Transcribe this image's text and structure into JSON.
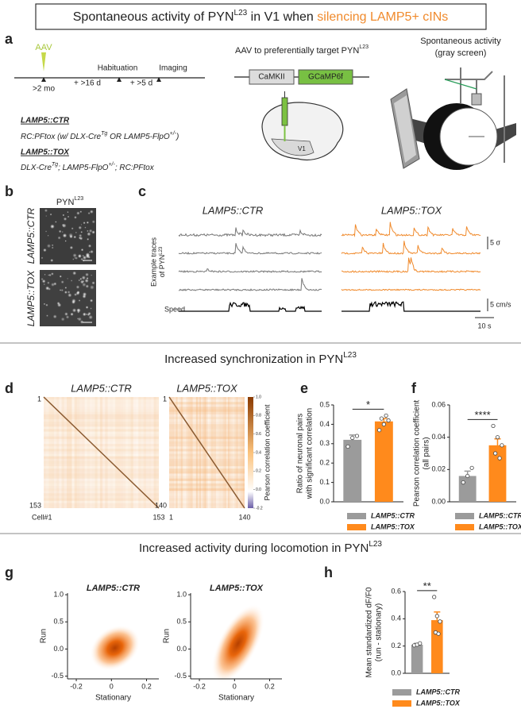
{
  "title": [
    "Spontaneous activity of PYN",
    "L23",
    " in V1 when ",
    "silencing LAMP5+ cINs"
  ],
  "panel_a": {
    "label": "a",
    "aav": "AAV",
    "timeline": [
      ">2 mo",
      "+ >16 d",
      "Habituation",
      "+ >5 d",
      "Imaging"
    ],
    "ctr_name": "LAMP5::CTR",
    "ctr_genotype": [
      "RC:PFtox (w/ DLX-Cre",
      "Tg",
      " OR LAMP5-FlpO",
      "+/-",
      ")"
    ],
    "tox_name": "LAMP5::TOX",
    "tox_genotype": [
      "DLX-Cre",
      "Tg",
      "; LAMP5-FlpO",
      "+/-",
      "; RC:PFtox"
    ],
    "construct_title": [
      "AAV to preferentially target PYN",
      "L23"
    ],
    "promoter": "CaMKII",
    "indicator": "GCaMP6f",
    "region": "V1",
    "setup_title": [
      "Spontaneous activity",
      "(gray screen)"
    ]
  },
  "panel_b": {
    "label": "b",
    "title": [
      "PYN",
      "L23"
    ],
    "rows": [
      "LAMP5::CTR",
      "LAMP5::TOX"
    ]
  },
  "panel_c": {
    "label": "c",
    "groups": [
      "LAMP5::CTR",
      "LAMP5::TOX"
    ],
    "ylabel": [
      "Example traces",
      "of PYN",
      "L23"
    ],
    "speed": "Speed",
    "scale": [
      "5 σ",
      "5 cm/s",
      "10 s"
    ]
  },
  "section_1": [
    "Increased synchronization in PYN",
    "L23"
  ],
  "section_2": [
    "Increased activity during locomotion in PYN",
    "L23"
  ],
  "chart_data": [
    {
      "type": "heatmap",
      "label": "d",
      "titles": [
        "LAMP5::CTR",
        "LAMP5::TOX"
      ],
      "axis_labels": [
        [
          "1",
          "153",
          "Cell#1",
          "153"
        ],
        [
          "1",
          "140",
          "1",
          "140"
        ]
      ],
      "colorbar_label": "Pearson correlation coefficient",
      "colorbar_lim": [
        -0.2,
        1.0
      ],
      "colorbar_ticks": [
        {
          "value": 1,
          "label": "1.0"
        },
        0.8,
        0.6,
        0.4,
        0.2,
        {
          "value": 0,
          "label": "0.0"
        },
        -0.2
      ]
    },
    {
      "type": "bar",
      "label": "e",
      "ylabel": [
        "Ratio of neuronal pairs",
        "with significant correlation"
      ],
      "categories": [
        "LAMP5::CTR",
        "LAMP5::TOX"
      ],
      "colors": [
        "#9b9b9b",
        "#ff8a1c"
      ],
      "values": [
        0.32,
        0.415
      ],
      "errors": [
        0.025,
        0.015
      ],
      "points": [
        [
          0.285,
          0.33,
          0.34
        ],
        [
          0.37,
          0.4,
          0.42,
          0.43,
          0.445
        ]
      ],
      "significance": "*",
      "ylim": [
        0,
        0.5
      ],
      "yticks": [
        {
          "value": 0,
          "label": "0.0"
        },
        0.1,
        0.2,
        0.3,
        0.4,
        0.5
      ]
    },
    {
      "type": "bar",
      "label": "f",
      "ylabel": [
        "Pearson correlation coefficient",
        "(all pairs)"
      ],
      "categories": [
        "LAMP5::CTR",
        "LAMP5::TOX"
      ],
      "colors": [
        "#9b9b9b",
        "#ff8a1c"
      ],
      "values": [
        0.016,
        0.035
      ],
      "errors": [
        0.003,
        0.004
      ],
      "points": [
        [
          0.012,
          0.016,
          0.021
        ],
        [
          0.047,
          0.04,
          0.035,
          0.03,
          0.027
        ]
      ],
      "significance": "****",
      "ylim": [
        0,
        0.06
      ],
      "yticks": [
        {
          "value": 0,
          "label": "0.00"
        },
        0.02,
        0.04,
        0.06
      ]
    },
    {
      "type": "density",
      "label": "g",
      "xlabel": "Stationary",
      "ylabel": "Run",
      "xlim": [
        -0.25,
        0.27
      ],
      "ylim": [
        -0.55,
        1.03
      ],
      "xticks": [
        -0.2,
        0,
        0.2
      ],
      "yticks": [
        -0.5,
        {
          "value": 0,
          "label": "0.0"
        },
        0.5,
        {
          "value": 1,
          "label": "1.0"
        }
      ],
      "panels": [
        {
          "title": "LAMP5::CTR",
          "peak_x": 0.02,
          "peak_y": 0.02
        },
        {
          "title": "LAMP5::TOX",
          "peak_x": 0.02,
          "peak_y": 0.1
        }
      ]
    },
    {
      "type": "bar",
      "label": "h",
      "ylabel": [
        "Mean standardized dF/F0",
        "(run - stationary)"
      ],
      "categories": [
        "LAMP5::CTR",
        "LAMP5::TOX"
      ],
      "colors": [
        "#9b9b9b",
        "#ff8a1c"
      ],
      "values": [
        0.21,
        0.39
      ],
      "errors": [
        0.01,
        0.06
      ],
      "points": [
        [
          0.205,
          0.21,
          0.22
        ],
        [
          0.56,
          0.42,
          0.38,
          0.3,
          0.29
        ]
      ],
      "significance": "**",
      "ylim": [
        0,
        0.6
      ],
      "yticks": [
        {
          "value": 0,
          "label": "0.0"
        },
        0.2,
        0.4,
        0.6
      ]
    }
  ]
}
